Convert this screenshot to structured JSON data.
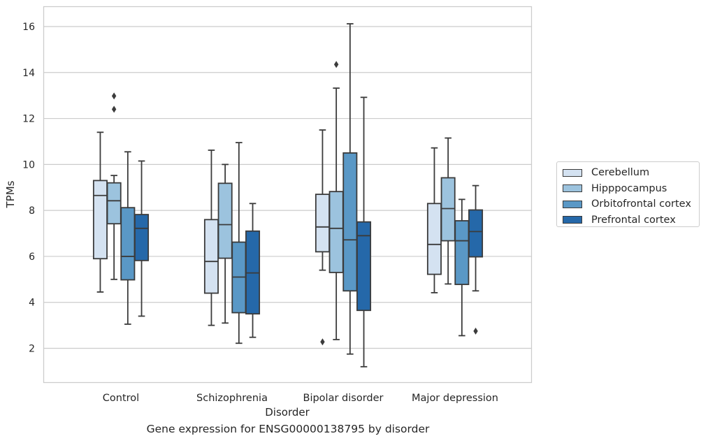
{
  "chart_data": {
    "type": "box",
    "title": "",
    "xlabel": "Disorder",
    "ylabel": "TPMs",
    "caption": "Gene expression for ENSG00000138795 by disorder",
    "ylim": [
      0.5,
      16.8
    ],
    "yticks": [
      2,
      4,
      6,
      8,
      10,
      12,
      14,
      16
    ],
    "grid": "horizontal",
    "legend_position": "right",
    "categories": [
      "Control",
      "Schizophrenia",
      "Bipolar disorder",
      "Major depression"
    ],
    "series": [
      {
        "name": "Cerebellum",
        "color": "#d4e2f1",
        "boxes": [
          {
            "whislo": 4.45,
            "q1": 5.9,
            "med": 8.65,
            "q3": 9.3,
            "whishi": 11.4,
            "fliers": []
          },
          {
            "whislo": 3.0,
            "q1": 4.4,
            "med": 5.78,
            "q3": 7.6,
            "whishi": 10.62,
            "fliers": []
          },
          {
            "whislo": 5.4,
            "q1": 6.2,
            "med": 7.28,
            "q3": 8.7,
            "whishi": 11.5,
            "fliers": [
              2.28
            ]
          },
          {
            "whislo": 4.42,
            "q1": 5.22,
            "med": 6.52,
            "q3": 8.3,
            "whishi": 10.72,
            "fliers": []
          }
        ]
      },
      {
        "name": "Hipppocampus",
        "color": "#9cc3de",
        "boxes": [
          {
            "whislo": 5.0,
            "q1": 7.42,
            "med": 8.42,
            "q3": 9.2,
            "whishi": 9.52,
            "fliers": [
              12.4,
              12.98
            ]
          },
          {
            "whislo": 3.1,
            "q1": 5.92,
            "med": 7.38,
            "q3": 9.18,
            "whishi": 10.0,
            "fliers": []
          },
          {
            "whislo": 2.38,
            "q1": 5.3,
            "med": 7.22,
            "q3": 8.82,
            "whishi": 13.32,
            "fliers": [
              14.35
            ]
          },
          {
            "whislo": 4.8,
            "q1": 6.68,
            "med": 8.08,
            "q3": 9.42,
            "whishi": 11.15,
            "fliers": []
          }
        ]
      },
      {
        "name": "Orbitofrontal cortex",
        "color": "#5a98c6",
        "boxes": [
          {
            "whislo": 3.05,
            "q1": 4.98,
            "med": 6.0,
            "q3": 8.12,
            "whishi": 10.55,
            "fliers": []
          },
          {
            "whislo": 2.22,
            "q1": 3.55,
            "med": 5.1,
            "q3": 6.62,
            "whishi": 10.95,
            "fliers": []
          },
          {
            "whislo": 1.75,
            "q1": 4.5,
            "med": 6.72,
            "q3": 10.5,
            "whishi": 16.12,
            "fliers": []
          },
          {
            "whislo": 2.55,
            "q1": 4.78,
            "med": 6.68,
            "q3": 7.55,
            "whishi": 8.48,
            "fliers": []
          }
        ]
      },
      {
        "name": "Prefrontal cortex",
        "color": "#2568a9",
        "boxes": [
          {
            "whislo": 3.4,
            "q1": 5.82,
            "med": 7.22,
            "q3": 7.82,
            "whishi": 10.15,
            "fliers": []
          },
          {
            "whislo": 2.48,
            "q1": 3.5,
            "med": 5.28,
            "q3": 7.1,
            "whishi": 8.3,
            "fliers": []
          },
          {
            "whislo": 1.2,
            "q1": 3.65,
            "med": 6.9,
            "q3": 7.5,
            "whishi": 12.92,
            "fliers": []
          },
          {
            "whislo": 4.5,
            "q1": 5.98,
            "med": 7.08,
            "q3": 8.02,
            "whishi": 9.08,
            "fliers": [
              2.75
            ]
          }
        ]
      }
    ]
  }
}
